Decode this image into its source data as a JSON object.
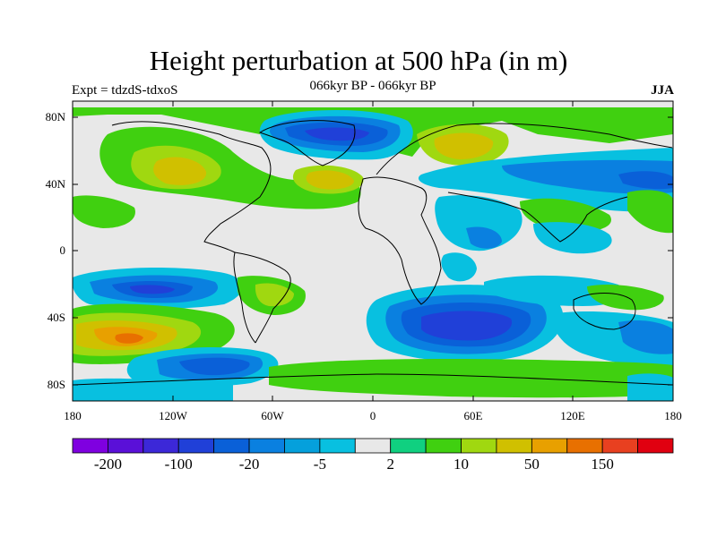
{
  "title": "Height perturbation at 500 hPa (in m)",
  "subtitle": "066kyr BP - 066kyr BP",
  "left_label": "Expt = tdzdS-tdxoS",
  "right_label": "JJA",
  "map": {
    "lon_range": [
      -180,
      180
    ],
    "lat_range": [
      -90,
      90
    ],
    "x_ticks": [
      "180",
      "120W",
      "60W",
      "0",
      "60E",
      "120E",
      "180"
    ],
    "y_ticks": [
      "80N",
      "40N",
      "0",
      "40S",
      "80S"
    ],
    "background": "#e8e8e8"
  },
  "colorbar": {
    "colors": [
      "#7f00e0",
      "#5a10d8",
      "#3c28d8",
      "#2040d8",
      "#0a60d8",
      "#0a80e0",
      "#05a0dc",
      "#08c0e0",
      "#e8e8e8",
      "#10d080",
      "#40d010",
      "#a0d810",
      "#d0c000",
      "#e8a000",
      "#e87000",
      "#e84020",
      "#e00010"
    ],
    "labels": [
      {
        "text": "-200",
        "boundary": 1
      },
      {
        "text": "-100",
        "boundary": 3
      },
      {
        "text": "-20",
        "boundary": 5
      },
      {
        "text": "-5",
        "boundary": 7
      },
      {
        "text": "2",
        "boundary": 9
      },
      {
        "text": "10",
        "boundary": 11
      },
      {
        "text": "50",
        "boundary": 13
      },
      {
        "text": "150",
        "boundary": 15
      }
    ]
  }
}
